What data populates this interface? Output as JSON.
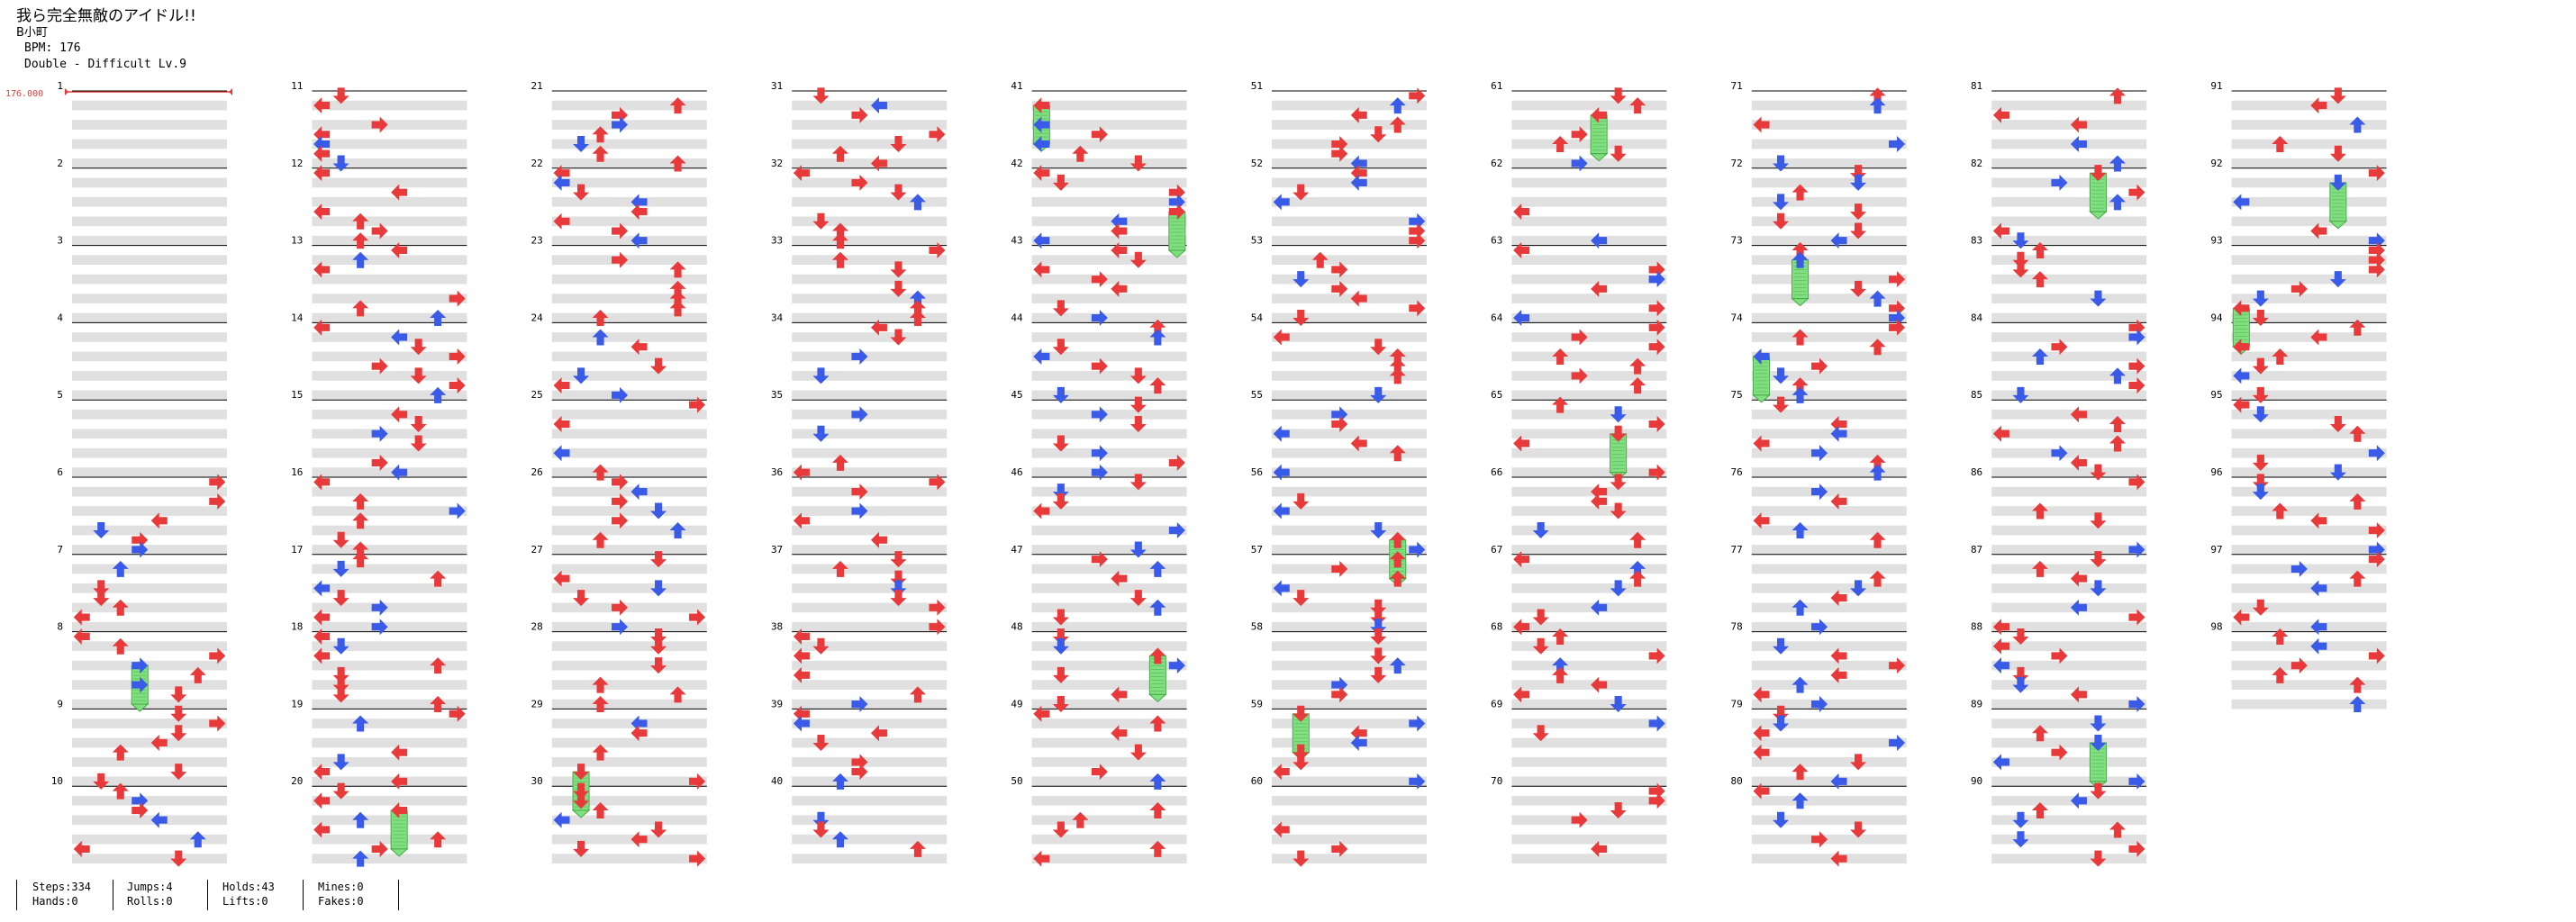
{
  "song": {
    "title": "我ら完全無敵のアイドル!!",
    "artist": "B小町",
    "bpm_label": "BPM: 176",
    "chart_label": "Double - Difficult Lv.9"
  },
  "bpm_marker": "176.000",
  "measure_numbers": [
    "1",
    "2",
    "3",
    "4",
    "5",
    "6",
    "7",
    "8",
    "9",
    "10",
    "11",
    "12",
    "13",
    "14",
    "15",
    "16",
    "17",
    "18",
    "19",
    "20",
    "21",
    "22",
    "23",
    "24",
    "25",
    "26",
    "27",
    "28",
    "29",
    "30",
    "31",
    "32",
    "33",
    "34",
    "35",
    "36",
    "37",
    "38",
    "39",
    "40",
    "41",
    "42",
    "43",
    "44",
    "45",
    "46",
    "47",
    "48",
    "49",
    "50",
    "51",
    "52",
    "53",
    "54",
    "55",
    "56",
    "57",
    "58",
    "59",
    "60",
    "61",
    "62",
    "63",
    "64",
    "65",
    "66",
    "67",
    "68",
    "69",
    "70",
    "71",
    "72",
    "73",
    "74",
    "75",
    "76",
    "77",
    "78",
    "79",
    "80",
    "81",
    "82",
    "83",
    "84",
    "85",
    "86",
    "87",
    "88",
    "89",
    "90",
    "91",
    "92",
    "93",
    "94",
    "95",
    "96",
    "97",
    "98"
  ],
  "note_colors": {
    "quarter": "#e83a3a",
    "eighth": "#3a5ae8",
    "hold": "#80e080"
  },
  "stats": {
    "steps": "Steps:334",
    "hands": "Hands:0",
    "jumps": "Jumps:4",
    "rolls": "Rolls:0",
    "holds": "Holds:43",
    "lifts": "Lifts:0",
    "mines": "Mines:0",
    "fakes": "Fakes:0"
  }
}
